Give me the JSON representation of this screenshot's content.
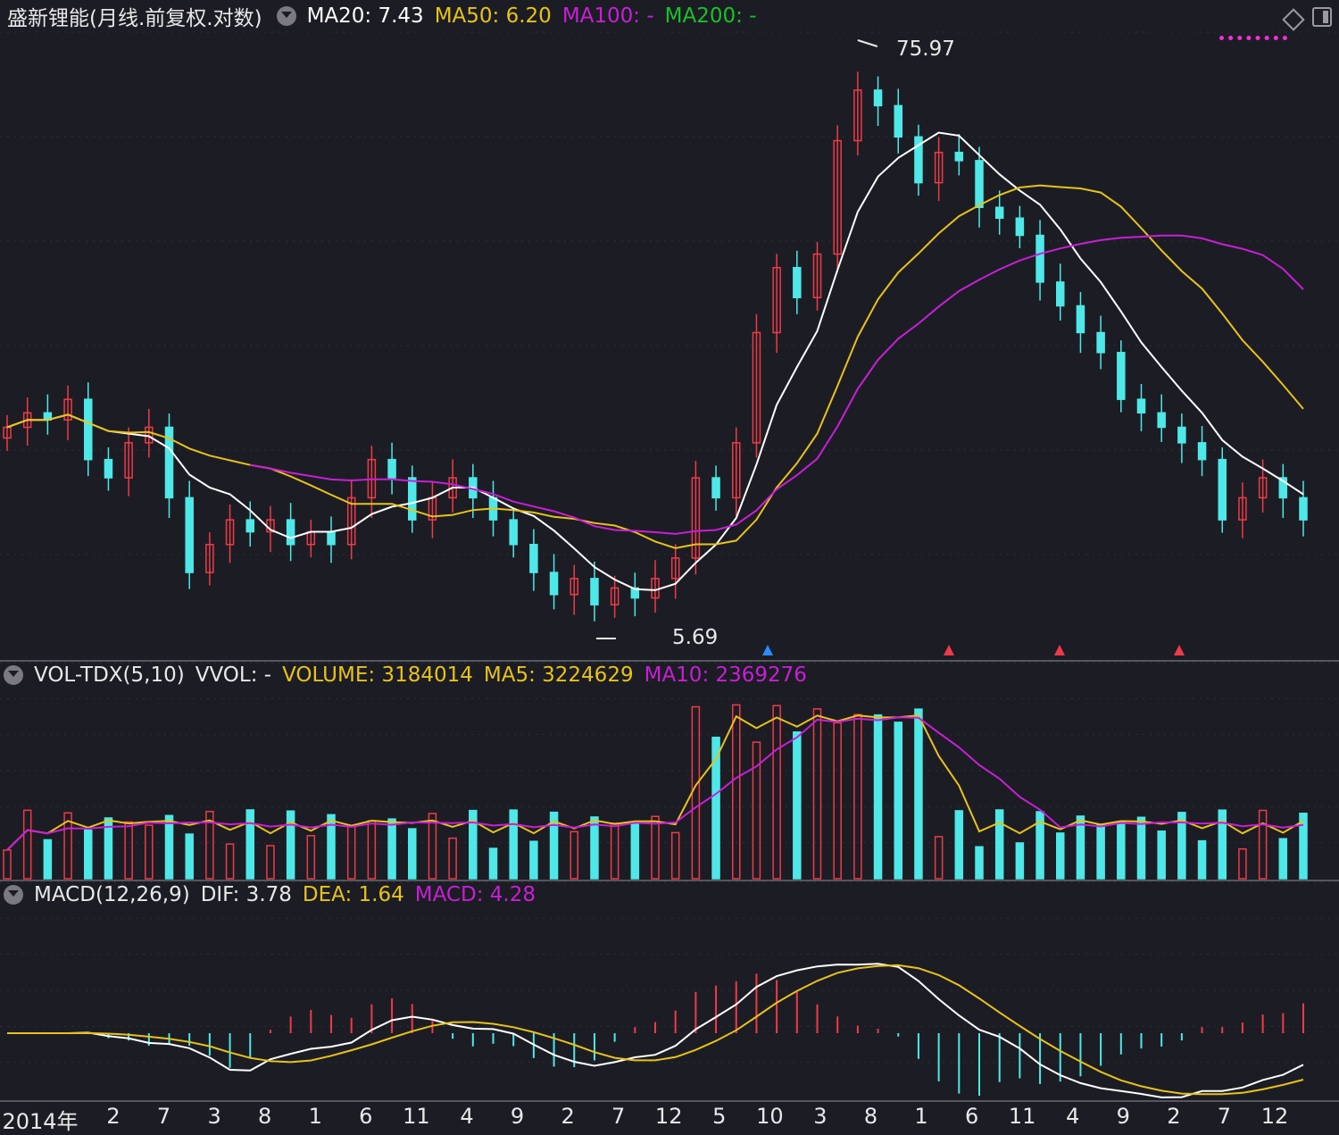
{
  "price_panel": {
    "title": "盛新锂能(月线.前复权.对数)",
    "ma20_label": "MA20: 7.43",
    "ma50_label": "MA50: 6.20",
    "ma100_label": "MA100: -",
    "ma200_label": "MA200: -",
    "high_annotation": "75.97",
    "low_annotation": "5.69",
    "colors": {
      "ma20": "#ffffff",
      "ma50": "#e8c21a",
      "ma100": "#c81fd6",
      "ma200": "#19c12a"
    }
  },
  "volume_panel": {
    "title": "VOL-TDX(5,10)",
    "vvol_label": "VVOL: -",
    "volume_label": "VOLUME: 3184014",
    "ma5_label": "MA5: 3224629",
    "ma10_label": "MA10: 2369276"
  },
  "macd_panel": {
    "title": "MACD(12,26,9)",
    "dif_label": "DIF: 3.78",
    "dea_label": "DEA: 1.64",
    "macd_label": "MACD: 4.28"
  },
  "x_axis": {
    "labels": [
      "2014年",
      "2",
      "7",
      "3",
      "8",
      "1",
      "6",
      "11",
      "4",
      "9",
      "2",
      "7",
      "12",
      "5",
      "10",
      "3",
      "8",
      "1",
      "6",
      "11",
      "4",
      "9",
      "2",
      "7",
      "12"
    ]
  },
  "colors": {
    "up": "#f03a48",
    "down": "#4ee8e8",
    "background": "#1c1d24",
    "grid": "#2e2f38"
  },
  "chart_data": [
    {
      "type": "candlestick",
      "title": "盛新锂能(月线.前复权.对数)",
      "y_scale": "log",
      "period": "monthly",
      "high_marker": 75.97,
      "low_marker": 5.69,
      "approx_close_path": [
        14,
        15,
        14.5,
        16,
        12,
        11,
        13,
        14,
        10,
        7,
        8,
        9,
        8.5,
        9,
        8,
        8.5,
        8,
        10,
        12,
        11,
        9,
        10,
        11,
        10,
        9,
        8,
        7,
        6.3,
        6.8,
        6,
        6.5,
        6.2,
        6.8,
        7.5,
        11,
        10,
        13,
        22,
        30,
        26,
        32,
        55,
        70,
        65,
        56,
        45,
        52,
        50,
        40,
        38,
        35,
        28,
        25,
        22,
        20,
        16,
        15,
        14,
        13,
        12,
        9,
        10,
        11,
        10,
        9
      ],
      "ma20_last": 7.43,
      "ma50_last": 6.2
    },
    {
      "type": "bar",
      "title": "VOL-TDX(5,10)",
      "volume_last": 3184014,
      "ma5_last": 3224629,
      "ma10_last": 2369276
    },
    {
      "type": "line",
      "title": "MACD(12,26,9)",
      "dif_last": 3.78,
      "dea_last": 1.64,
      "macd_last": 4.28
    }
  ]
}
